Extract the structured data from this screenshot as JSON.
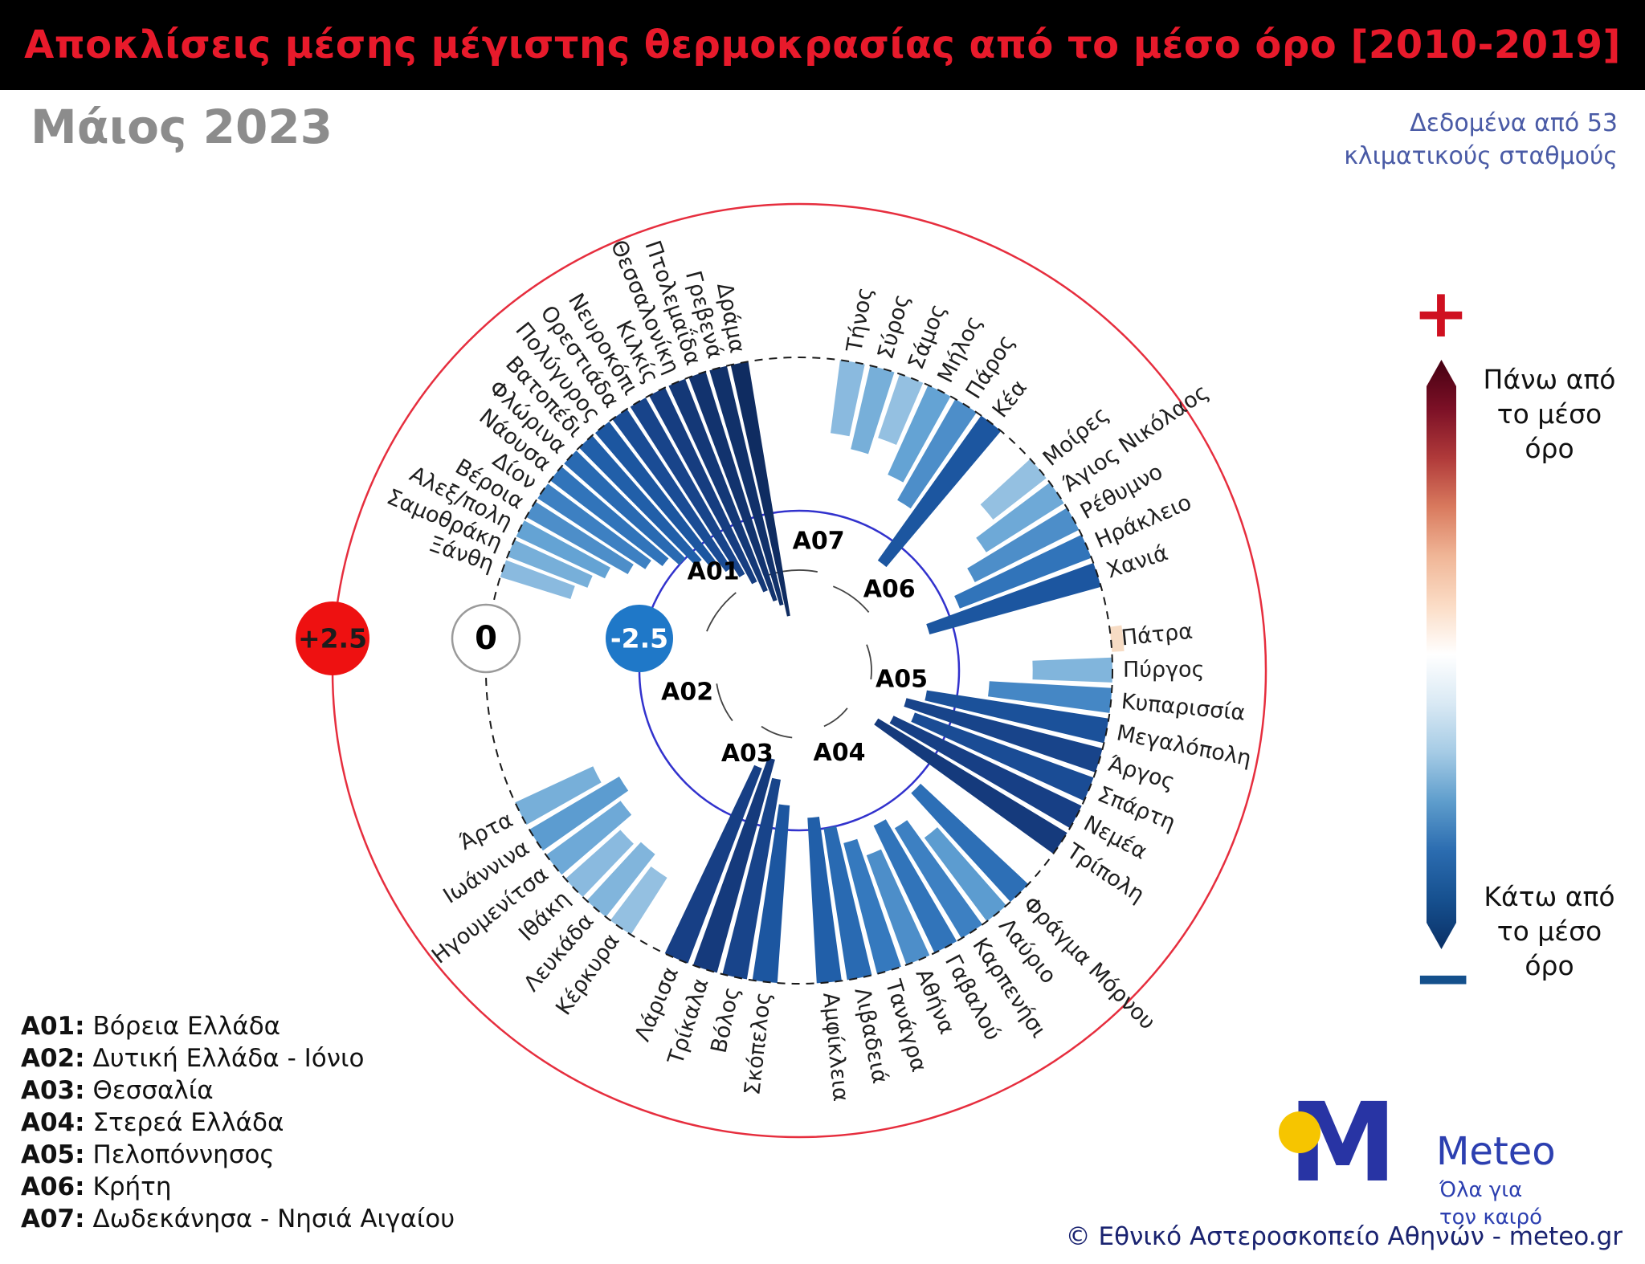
{
  "header": {
    "title": "Αποκλίσεις μέσης μέγιστης θερμοκρασίας από το μέσο όρο [2010-2019]"
  },
  "subtitle": "Μάιος 2023",
  "data_source_note": "Δεδομένα από 53\nκλιματικούς σταθμούς",
  "colorbar": {
    "plus_sign": "+",
    "minus_sign": "−",
    "above_label": "Πάνω από\nτο μέσο\nόρο",
    "below_label": "Κάτω από\nτο μέσο\nόρο",
    "gradient_stops": [
      "#450012",
      "#7c1026",
      "#b03a3a",
      "#d97a5e",
      "#f0b697",
      "#fbdcc5",
      "#ffffff",
      "#d9e9f4",
      "#a5cbe5",
      "#5e9dcc",
      "#2b6cb0",
      "#16508f",
      "#0a3066"
    ]
  },
  "legend": {
    "items": [
      {
        "code": "A01:",
        "name": "Βόρεια Ελλάδα"
      },
      {
        "code": "A02:",
        "name": "Δυτική Ελλάδα - Ιόνιο"
      },
      {
        "code": "A03:",
        "name": "Θεσσαλία"
      },
      {
        "code": "A04:",
        "name": "Στερεά Ελλάδα"
      },
      {
        "code": "A05:",
        "name": "Πελοπόννησος"
      },
      {
        "code": "A06:",
        "name": "Κρήτη"
      },
      {
        "code": "A07:",
        "name": "Δωδεκάνησα - Νησιά Αιγαίου"
      }
    ]
  },
  "footer": {
    "brand": "Meteo",
    "logo_letter": "M",
    "tagline": "Όλα για\nτον καιρό",
    "copyright": "© Εθνικό Αστεροσκοπείο Αθηνών - meteo.gr"
  },
  "chart_data": {
    "type": "bar",
    "layout": "polar",
    "title": "Αποκλίσεις μέσης μέγιστης θερμοκρασίας από το μέσο όρο [2010-2019]",
    "period": "Μάιος 2023",
    "baseline_period": "2010-2019",
    "station_count": 53,
    "units": "°C",
    "radial_axis": {
      "outer_value": 2.5,
      "zero_value": 0,
      "inner_value": -2.5
    },
    "rings": [
      {
        "value": 2.5,
        "label": "+2.5",
        "color": "#e62e3e",
        "style": "solid",
        "marker_bg": "#ee1111",
        "marker_text": "#1c1c1c"
      },
      {
        "value": 0,
        "label": "0",
        "color": "#1a1a1a",
        "style": "dashed",
        "marker_bg": "#ffffff",
        "marker_text": "#000000"
      },
      {
        "value": -2.5,
        "label": "-2.5",
        "color": "#3232cd",
        "style": "solid",
        "marker_bg": "#1f78c8",
        "marker_text": "#ffffff"
      }
    ],
    "palette": {
      "positive": "#f7dcc4",
      "negative_stops": [
        [
          0,
          "#ddedf8"
        ],
        [
          1.0,
          "#9dc6e4"
        ],
        [
          1.6,
          "#64a3d4"
        ],
        [
          2.2,
          "#3579be"
        ],
        [
          2.8,
          "#1d5aa5"
        ],
        [
          3.4,
          "#173f85"
        ],
        [
          4.3,
          "#0e2a5c"
        ]
      ]
    },
    "display_order": [
      "A07",
      "A06",
      "A05",
      "A04",
      "A03",
      "A02",
      "A01"
    ],
    "groups": [
      {
        "code": "A01",
        "region": "Βόρεια Ελλάδα",
        "stations": [
          {
            "name": "Ξάνθη",
            "value": -1.2
          },
          {
            "name": "Σαμοθράκη",
            "value": -1.4
          },
          {
            "name": "Αλεξ/πολη",
            "value": -1.6
          },
          {
            "name": "Βέροια",
            "value": -1.9
          },
          {
            "name": "Δίον",
            "value": -2.1
          },
          {
            "name": "Νάουσα",
            "value": -2.3
          },
          {
            "name": "Φλώρινα",
            "value": -2.5
          },
          {
            "name": "Βατοπέδι",
            "value": -2.7
          },
          {
            "name": "Πολύγυρος",
            "value": -2.9
          },
          {
            "name": "Ορεστιάδα",
            "value": -3.1
          },
          {
            "name": "Νευροκόπι",
            "value": -3.3
          },
          {
            "name": "Κιλκίς",
            "value": -3.5
          },
          {
            "name": "Θεσσαλονίκη",
            "value": -3.7
          },
          {
            "name": "Πτολεμαΐδα",
            "value": -3.9
          },
          {
            "name": "Γρεβενά",
            "value": -4.0
          },
          {
            "name": "Δράμα",
            "value": -4.2
          }
        ]
      },
      {
        "code": "A02",
        "region": "Δυτική Ελλάδα - Ιόνιο",
        "stations": [
          {
            "name": "Κέρκυρα",
            "value": -1.1
          },
          {
            "name": "Λευκάδα",
            "value": -1.3
          },
          {
            "name": "Ιθάκη",
            "value": -1.2
          },
          {
            "name": "Ηγουμενίτσα",
            "value": -1.5
          },
          {
            "name": "Ιωάννινα",
            "value": -1.7
          },
          {
            "name": "Άρτα",
            "value": -1.4
          }
        ]
      },
      {
        "code": "A03",
        "region": "Θεσσαλία",
        "stations": [
          {
            "name": "Σκόπελος",
            "value": -2.9
          },
          {
            "name": "Βόλος",
            "value": -3.3
          },
          {
            "name": "Τρίκαλα",
            "value": -3.6
          },
          {
            "name": "Λάρισα",
            "value": -3.4
          }
        ]
      },
      {
        "code": "A04",
        "region": "Στερεά Ελλάδα",
        "stations": [
          {
            "name": "Φράγμα Μόρνου",
            "value": -2.4
          },
          {
            "name": "Λαύριο",
            "value": -1.7
          },
          {
            "name": "Καρπενήσι",
            "value": -2.1
          },
          {
            "name": "Γαβαλού",
            "value": -2.3
          },
          {
            "name": "Αθήνα",
            "value": -1.9
          },
          {
            "name": "Τανάγρα",
            "value": -2.2
          },
          {
            "name": "Λιβαδειά",
            "value": -2.5
          },
          {
            "name": "Αμφίκλεια",
            "value": -2.7
          }
        ]
      },
      {
        "code": "A05",
        "region": "Πελοπόννησος",
        "stations": [
          {
            "name": "Πάτρα",
            "value": 0.2
          },
          {
            "name": "Πύργος",
            "value": -1.3
          },
          {
            "name": "Κυπαρισσία",
            "value": -2.0
          },
          {
            "name": "Μεγαλόπολη",
            "value": -3.0
          },
          {
            "name": "Άργος",
            "value": -3.3
          },
          {
            "name": "Σπάρτη",
            "value": -3.1
          },
          {
            "name": "Νεμέα",
            "value": -3.4
          },
          {
            "name": "Τρίπολη",
            "value": -3.6
          }
        ]
      },
      {
        "code": "A06",
        "region": "Κρήτη",
        "stations": [
          {
            "name": "Μοίρες",
            "value": -1.1
          },
          {
            "name": "Άγιος Νικόλαος",
            "value": -1.5
          },
          {
            "name": "Ρέθυμνο",
            "value": -1.9
          },
          {
            "name": "Ηράκλειο",
            "value": -2.3
          },
          {
            "name": "Χανιά",
            "value": -2.9
          }
        ]
      },
      {
        "code": "A07",
        "region": "Δωδεκάνησα - Νησιά Αιγαίου",
        "stations": [
          {
            "name": "Τήνος",
            "value": -1.2
          },
          {
            "name": "Σύρος",
            "value": -1.4
          },
          {
            "name": "Σάμος",
            "value": -1.1
          },
          {
            "name": "Μήλος",
            "value": -1.6
          },
          {
            "name": "Πάρος",
            "value": -1.9
          },
          {
            "name": "Κέα",
            "value": -2.9
          }
        ]
      }
    ]
  }
}
